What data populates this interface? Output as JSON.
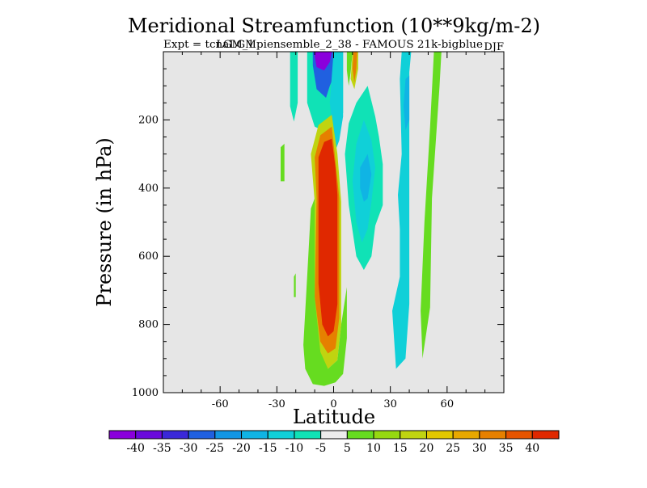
{
  "chart_data": {
    "type": "heatmap",
    "title": "Meridional Streamfunction (10**9kg/m-2)",
    "subtitle_overlay": "LGM_1",
    "subtitle_left": "Expt = tcnaLGMpiensemble_2_38 - FAMOUS 21k-bigblue",
    "subtitle_right": "DJF",
    "xlabel": "Latitude",
    "ylabel": "Pressure (in hPa)",
    "xlim": [
      -90,
      90
    ],
    "ylim": [
      1000,
      0
    ],
    "x_ticks": [
      {
        "value": -60,
        "label": "-60"
      },
      {
        "value": -30,
        "label": "-30"
      },
      {
        "value": 0,
        "label": "0"
      },
      {
        "value": 30,
        "label": "30"
      },
      {
        "value": 60,
        "label": "60"
      }
    ],
    "y_ticks": [
      {
        "value": 200,
        "label": "200"
      },
      {
        "value": 400,
        "label": "400"
      },
      {
        "value": 600,
        "label": "600"
      },
      {
        "value": 800,
        "label": "800"
      },
      {
        "value": 1000,
        "label": "1000"
      }
    ],
    "background_color": "#e6e6e6",
    "colorbar": {
      "colors": [
        "#8a00dc",
        "#6a0adc",
        "#3a28d8",
        "#2060e0",
        "#1296e4",
        "#10b4e4",
        "#10d0d8",
        "#10e2b6",
        "#ececec",
        "#66dc20",
        "#96d810",
        "#c0d410",
        "#e2c800",
        "#e8a800",
        "#e68000",
        "#e65400",
        "#e02800"
      ],
      "labels": [
        "-40",
        "-35",
        "-30",
        "-25",
        "-20",
        "-15",
        "-10",
        "-5",
        "5",
        "10",
        "15",
        "20",
        "25",
        "30",
        "35",
        "40"
      ]
    },
    "contour_regions": [
      {
        "name": "trop-blue-band",
        "color_index": 7,
        "points": [
          [
            -14,
            1
          ],
          [
            5,
            1
          ],
          [
            5,
            180
          ],
          [
            -3,
            205
          ],
          [
            -5,
            233
          ],
          [
            -10,
            220
          ],
          [
            -14,
            150
          ]
        ]
      },
      {
        "name": "trop-negative-cell",
        "color_index": 3,
        "points": [
          [
            -11,
            1
          ],
          [
            2,
            1
          ],
          [
            1,
            60
          ],
          [
            -2,
            100
          ],
          [
            -4,
            135
          ],
          [
            -9,
            110
          ],
          [
            -11,
            40
          ]
        ]
      },
      {
        "name": "trop-negative-core",
        "color_index": 0,
        "points": [
          [
            -10,
            1
          ],
          [
            -1,
            1
          ],
          [
            -2,
            30
          ],
          [
            -5,
            55
          ],
          [
            -9,
            45
          ],
          [
            -10,
            15
          ]
        ]
      },
      {
        "name": "trop-blue-right",
        "color_index": 6,
        "points": [
          [
            -2,
            150
          ],
          [
            0,
            1
          ],
          [
            5,
            1
          ],
          [
            5,
            190
          ],
          [
            3,
            260
          ],
          [
            1,
            290
          ]
        ]
      },
      {
        "name": "left-cyan-streak",
        "color_index": 7,
        "points": [
          [
            -23,
            1
          ],
          [
            -19,
            1
          ],
          [
            -19,
            150
          ],
          [
            -21,
            205
          ],
          [
            -23,
            160
          ]
        ]
      },
      {
        "name": "hadley-yellow",
        "color_index": 11,
        "points": [
          [
            -10,
            440
          ],
          [
            -12,
            300
          ],
          [
            -8,
            215
          ],
          [
            -1,
            185
          ],
          [
            2,
            300
          ],
          [
            4,
            440
          ],
          [
            4,
            800
          ],
          [
            2,
            905
          ],
          [
            -3,
            930
          ],
          [
            -8,
            900
          ],
          [
            -12,
            760
          ]
        ]
      },
      {
        "name": "hadley-orange",
        "color_index": 14,
        "points": [
          [
            -9,
            430
          ],
          [
            -10,
            310
          ],
          [
            -7,
            245
          ],
          [
            -1,
            220
          ],
          [
            1,
            320
          ],
          [
            3,
            430
          ],
          [
            3,
            780
          ],
          [
            1,
            870
          ],
          [
            -3,
            885
          ],
          [
            -7,
            850
          ],
          [
            -10,
            720
          ]
        ]
      },
      {
        "name": "hadley-core",
        "color_index": 16,
        "points": [
          [
            -8,
            400
          ],
          [
            -8,
            310
          ],
          [
            -5,
            265
          ],
          [
            -1,
            255
          ],
          [
            1,
            340
          ],
          [
            2,
            420
          ],
          [
            2,
            740
          ],
          [
            0,
            820
          ],
          [
            -3,
            835
          ],
          [
            -6,
            800
          ],
          [
            -8,
            680
          ]
        ]
      },
      {
        "name": "outer-green-lower",
        "color_index": 9,
        "points": [
          [
            -14,
            660
          ],
          [
            -12,
            460
          ],
          [
            -10,
            430
          ],
          [
            -10,
            720
          ],
          [
            -7,
            880
          ],
          [
            -3,
            930
          ],
          [
            2,
            905
          ],
          [
            4,
            800
          ],
          [
            7,
            690
          ],
          [
            7,
            840
          ],
          [
            5,
            945
          ],
          [
            1,
            970
          ],
          [
            -5,
            980
          ],
          [
            -11,
            975
          ],
          [
            -15,
            930
          ],
          [
            -16,
            860
          ]
        ]
      },
      {
        "name": "subtrop-yellow",
        "color_index": 11,
        "points": [
          [
            10,
            1
          ],
          [
            13,
            1
          ],
          [
            13,
            50
          ],
          [
            11,
            110
          ],
          [
            9,
            80
          ]
        ]
      },
      {
        "name": "subtrop-orange",
        "color_index": 14,
        "points": [
          [
            10.5,
            1
          ],
          [
            12.5,
            1
          ],
          [
            12,
            50
          ],
          [
            11,
            90
          ],
          [
            10,
            50
          ]
        ]
      },
      {
        "name": "subtrop-green",
        "color_index": 9,
        "points": [
          [
            7,
            1
          ],
          [
            10,
            1
          ],
          [
            9,
            60
          ],
          [
            8,
            100
          ],
          [
            7,
            55
          ]
        ]
      },
      {
        "name": "ferrel-cyan-outer",
        "color_index": 7,
        "points": [
          [
            8,
            210
          ],
          [
            12,
            150
          ],
          [
            18,
            100
          ],
          [
            22,
            190
          ],
          [
            24,
            250
          ],
          [
            26,
            330
          ],
          [
            26,
            450
          ],
          [
            22,
            510
          ],
          [
            20,
            600
          ],
          [
            16,
            640
          ],
          [
            12,
            600
          ],
          [
            8,
            450
          ],
          [
            6,
            300
          ]
        ]
      },
      {
        "name": "ferrel-cyan-mid",
        "color_index": 6,
        "points": [
          [
            12,
            270
          ],
          [
            16,
            200
          ],
          [
            20,
            260
          ],
          [
            22,
            340
          ],
          [
            20,
            440
          ],
          [
            18,
            520
          ],
          [
            15,
            560
          ],
          [
            12,
            500
          ],
          [
            10,
            380
          ]
        ]
      },
      {
        "name": "ferrel-blue-core",
        "color_index": 5,
        "points": [
          [
            14,
            340
          ],
          [
            18,
            300
          ],
          [
            20,
            360
          ],
          [
            18,
            430
          ],
          [
            16,
            440
          ],
          [
            14,
            400
          ]
        ]
      },
      {
        "name": "polar-cyan-band",
        "color_index": 6,
        "points": [
          [
            36,
            1
          ],
          [
            41,
            1
          ],
          [
            40,
            60
          ],
          [
            40,
            400
          ],
          [
            40,
            620
          ],
          [
            40,
            740
          ],
          [
            38,
            900
          ],
          [
            33,
            930
          ],
          [
            31,
            760
          ],
          [
            35,
            660
          ],
          [
            35,
            520
          ],
          [
            34,
            420
          ],
          [
            36,
            300
          ],
          [
            35,
            80
          ]
        ]
      },
      {
        "name": "polar-blue-core",
        "color_index": 5,
        "points": [
          [
            38,
            80
          ],
          [
            40,
            70
          ],
          [
            40,
            200
          ],
          [
            38,
            230
          ],
          [
            37,
            160
          ]
        ]
      },
      {
        "name": "far-green-band",
        "color_index": 9,
        "points": [
          [
            53,
            1
          ],
          [
            57,
            1
          ],
          [
            56,
            100
          ],
          [
            52,
            430
          ],
          [
            51,
            750
          ],
          [
            47,
            900
          ],
          [
            46,
            760
          ],
          [
            48,
            500
          ],
          [
            51,
            220
          ]
        ]
      },
      {
        "name": "small-green-left",
        "color_index": 9,
        "points": [
          [
            -28,
            280
          ],
          [
            -26,
            270
          ],
          [
            -26,
            380
          ],
          [
            -28,
            380
          ]
        ]
      },
      {
        "name": "small-green-left2",
        "color_index": 9,
        "points": [
          [
            -21,
            660
          ],
          [
            -20,
            650
          ],
          [
            -20,
            720
          ],
          [
            -21,
            720
          ]
        ]
      }
    ]
  }
}
